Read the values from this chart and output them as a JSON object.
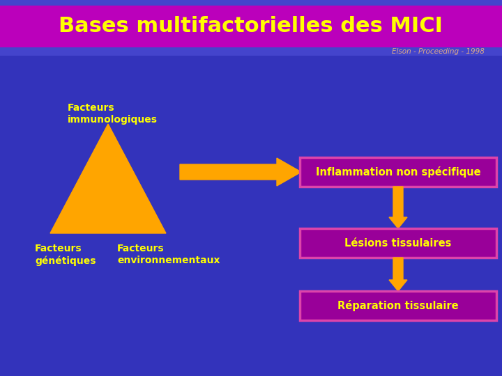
{
  "title": "Bases multifactorielles des MICI",
  "subtitle": "Elson - Proceeding - 1998",
  "title_color": "#FFFF00",
  "title_bg_color": "#BB00BB",
  "header_top_stripe_color": "#4444CC",
  "body_bg_color": "#3333BB",
  "subtitle_color": "#DDAA88",
  "text_color": "#FFFF00",
  "orange_color": "#FFA500",
  "box_bg_color": "#990099",
  "box_border_color": "#DD44AA",
  "label_facteurs_immuno": "Facteurs\nimmunologiques",
  "label_facteurs_gen": "Facteurs\ngénétiques",
  "label_facteurs_env": "Facteurs\nenvironnementaux",
  "label_inflammation": "Inflammation non spécifique",
  "label_lesions": "Lésions tissulaires",
  "label_reparation": "Réparation tissulaire"
}
